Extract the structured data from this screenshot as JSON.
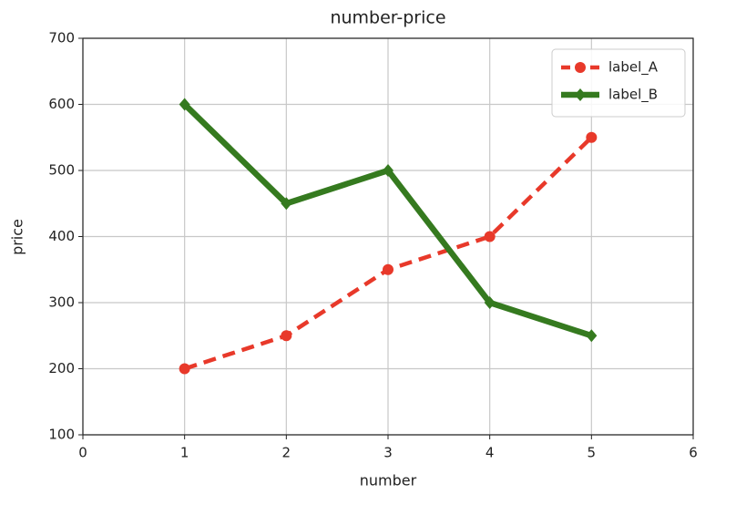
{
  "chart_data": {
    "type": "line",
    "title": "number-price",
    "xlabel": "number",
    "ylabel": "price",
    "x": [
      1,
      2,
      3,
      4,
      5
    ],
    "series": [
      {
        "name": "label_A",
        "color": "#e8392a",
        "linestyle": "dashed",
        "marker": "circle",
        "values": [
          200,
          250,
          350,
          400,
          550
        ]
      },
      {
        "name": "label_B",
        "color": "#357a1f",
        "linestyle": "solid",
        "marker": "diamond",
        "values": [
          600,
          450,
          500,
          300,
          250
        ]
      }
    ],
    "xlim": [
      0,
      6
    ],
    "xticks": [
      0,
      1,
      2,
      3,
      4,
      5,
      6
    ],
    "ylim": [
      100,
      700
    ],
    "yticks": [
      100,
      200,
      300,
      400,
      500,
      600,
      700
    ],
    "grid": true,
    "legend": "upper right"
  }
}
